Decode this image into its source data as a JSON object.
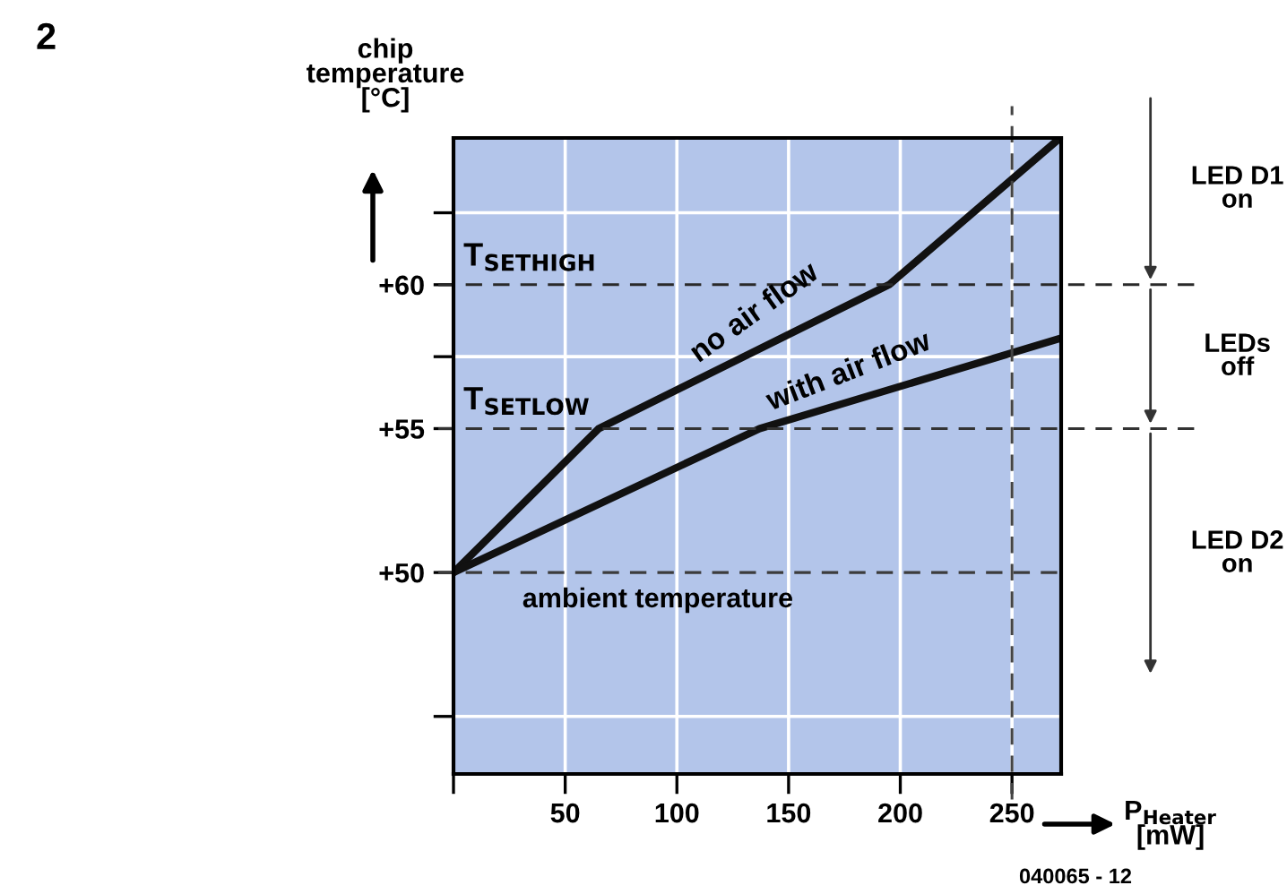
{
  "chart_data": {
    "type": "line",
    "title": "2",
    "xlabel": "P$_{Heater}$\n[mW]",
    "ylabel": "chip\ntemperature\n[°C]",
    "series": [
      {
        "name": "no air flow",
        "color": "#111111",
        "x": [
          0,
          65,
          195,
          270
        ],
        "values": [
          50,
          55,
          60,
          65
        ]
      },
      {
        "name": "with air flow",
        "color": "#111111",
        "x": [
          0,
          137,
          270
        ],
        "values": [
          50,
          55,
          58.1
        ]
      }
    ],
    "xlim": [
      0,
      272
    ],
    "xticks": [
      {
        "value": 0,
        "label": null
      },
      50,
      100,
      150,
      200,
      250
    ],
    "ylim": [
      43,
      65.1
    ],
    "yticks": [
      {
        "value": 45,
        "label": null
      },
      {
        "value": 50,
        "label": "+50"
      },
      {
        "value": 55,
        "label": "+55"
      },
      {
        "value": 57.5,
        "label": null
      },
      {
        "value": 60,
        "label": "+60"
      },
      {
        "value": 62.5,
        "label": null
      }
    ],
    "ref_lines": [
      {
        "axis": "y",
        "value": 60,
        "label": "T$_{SETHIGH}$",
        "line_style": "dashed",
        "color": "#2a2a2a"
      },
      {
        "axis": "y",
        "value": 55,
        "label": "T$_{SETLOW}$",
        "line_style": "dashed",
        "color": "#333333"
      },
      {
        "axis": "y",
        "value": 50,
        "label": "ambient temperature",
        "line_style": "dashed",
        "color": "#3c3c3c"
      },
      {
        "axis": "x",
        "value": 250,
        "line_style": "dashed",
        "color": "#444444"
      }
    ],
    "annotations": [
      "LED D1\non",
      "LEDs\noff",
      "LED D2\non",
      "040065 - 12"
    ],
    "grid": true,
    "line_style": "solid",
    "marker": "none"
  }
}
